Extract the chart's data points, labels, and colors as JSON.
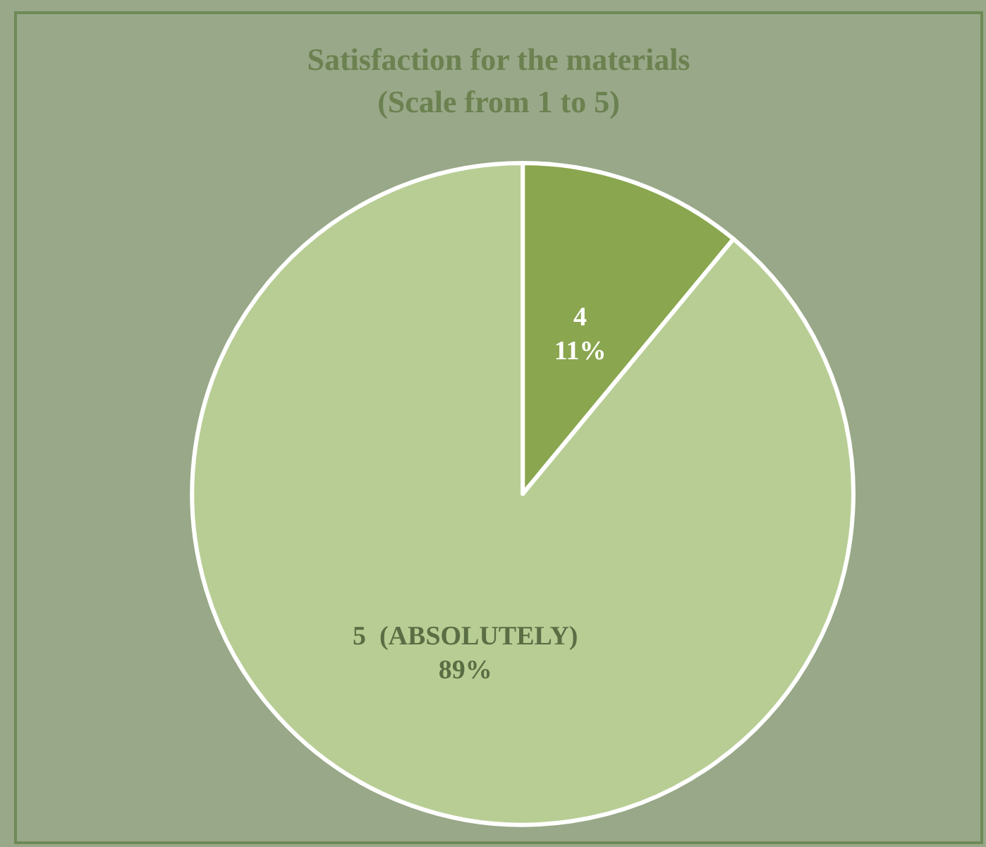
{
  "chart_data": {
    "type": "pie",
    "title": "Satisfaction for the materials\n(Scale from 1 to 5)",
    "categories": [
      "4",
      "5  (ABSOLUTELY)"
    ],
    "values": [
      11,
      89
    ],
    "colors": [
      "#8aa64f",
      "#b8cd94"
    ],
    "value_labels": [
      "11%",
      "89%"
    ],
    "legend": false
  }
}
